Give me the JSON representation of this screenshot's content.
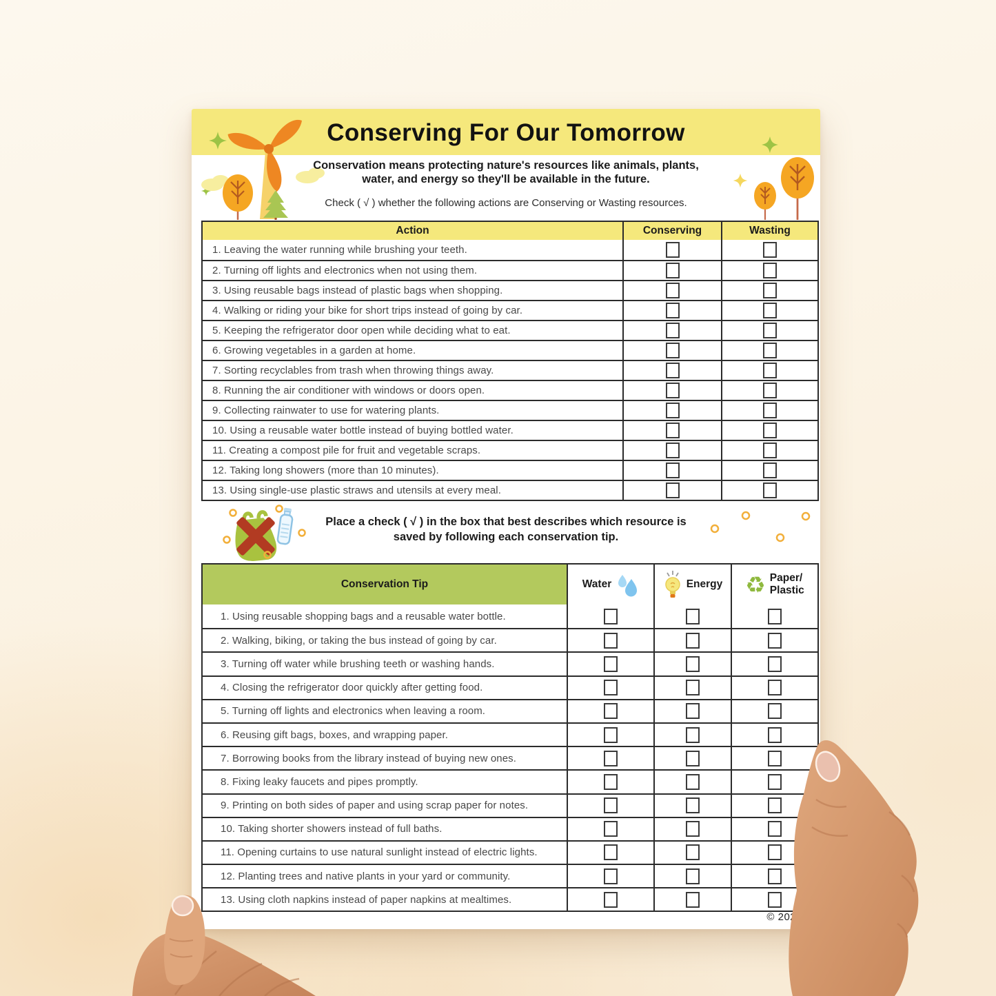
{
  "header": {
    "title": "Conserving For Our Tomorrow",
    "subtitle_line1": "Conservation means protecting nature's resources like animals, plants,",
    "subtitle_line2": "water, and energy so they'll be available in the future.",
    "instruction": "Check ( √ ) whether the following actions are Conserving or Wasting resources."
  },
  "table1": {
    "columns": [
      "Action",
      "Conserving",
      "Wasting"
    ],
    "rows": [
      "1. Leaving the water running while brushing your teeth.",
      "2. Turning off lights and electronics when not using them.",
      "3. Using reusable bags instead of plastic bags when shopping.",
      "4. Walking or riding your bike for short trips instead of going by car.",
      "5. Keeping the refrigerator door open while deciding what to eat.",
      "6. Growing vegetables in a garden at home.",
      "7. Sorting recyclables from trash when throwing things away.",
      "8. Running the air conditioner with windows or doors open.",
      "9. Collecting rainwater to use for watering plants.",
      "10. Using a reusable water bottle instead of buying bottled water.",
      "11. Creating a compost pile for fruit and vegetable scraps.",
      "12. Taking long showers (more than 10 minutes).",
      "13. Using single-use plastic straws and utensils at every meal."
    ]
  },
  "middle": {
    "instruction_line1": "Place a check ( √ ) in the box that best describes which resource is",
    "instruction_line2": "saved by following each conservation tip."
  },
  "table2": {
    "tip_header": "Conservation Tip",
    "columns": [
      {
        "label": "Water",
        "icon": "water-drops-icon"
      },
      {
        "label": "Energy",
        "icon": "lightbulb-icon"
      },
      {
        "label": "Paper/\nPlastic",
        "icon": "recycle-icon"
      }
    ],
    "recycle_glyph": "♻",
    "rows": [
      "1. Using reusable shopping bags and a reusable water bottle.",
      "2. Walking, biking, or taking the bus instead of going by car.",
      "3. Turning off water while brushing teeth or washing hands.",
      "4. Closing the refrigerator door quickly after getting food.",
      "5. Turning off lights and electronics when leaving a room.",
      "6. Reusing gift bags, boxes, and wrapping paper.",
      "7. Borrowing books from the library instead of buying new ones.",
      "8. Fixing leaky faucets and pipes promptly.",
      "9. Printing on both sides of paper and using scrap paper for notes.",
      "10. Taking shorter showers instead of full baths.",
      "11. Opening curtains to use natural sunlight instead of electric lights.",
      "12. Planting trees and native plants in your yard or community.",
      "13. Using cloth napkins instead of paper napkins at mealtimes."
    ]
  },
  "footer": {
    "copyright": "© 2025"
  },
  "colors": {
    "banner_yellow": "#f5e87c",
    "table2_green": "#b3c95d",
    "accent_orange": "#f08c1e",
    "pole_yellow": "#f6d26a",
    "tree_green": "#a9c653",
    "water_blue": "#7fc4ee",
    "x_red": "#b23b22",
    "recycle_green": "#8fb93e",
    "dot_yellow": "#f2af3a"
  }
}
